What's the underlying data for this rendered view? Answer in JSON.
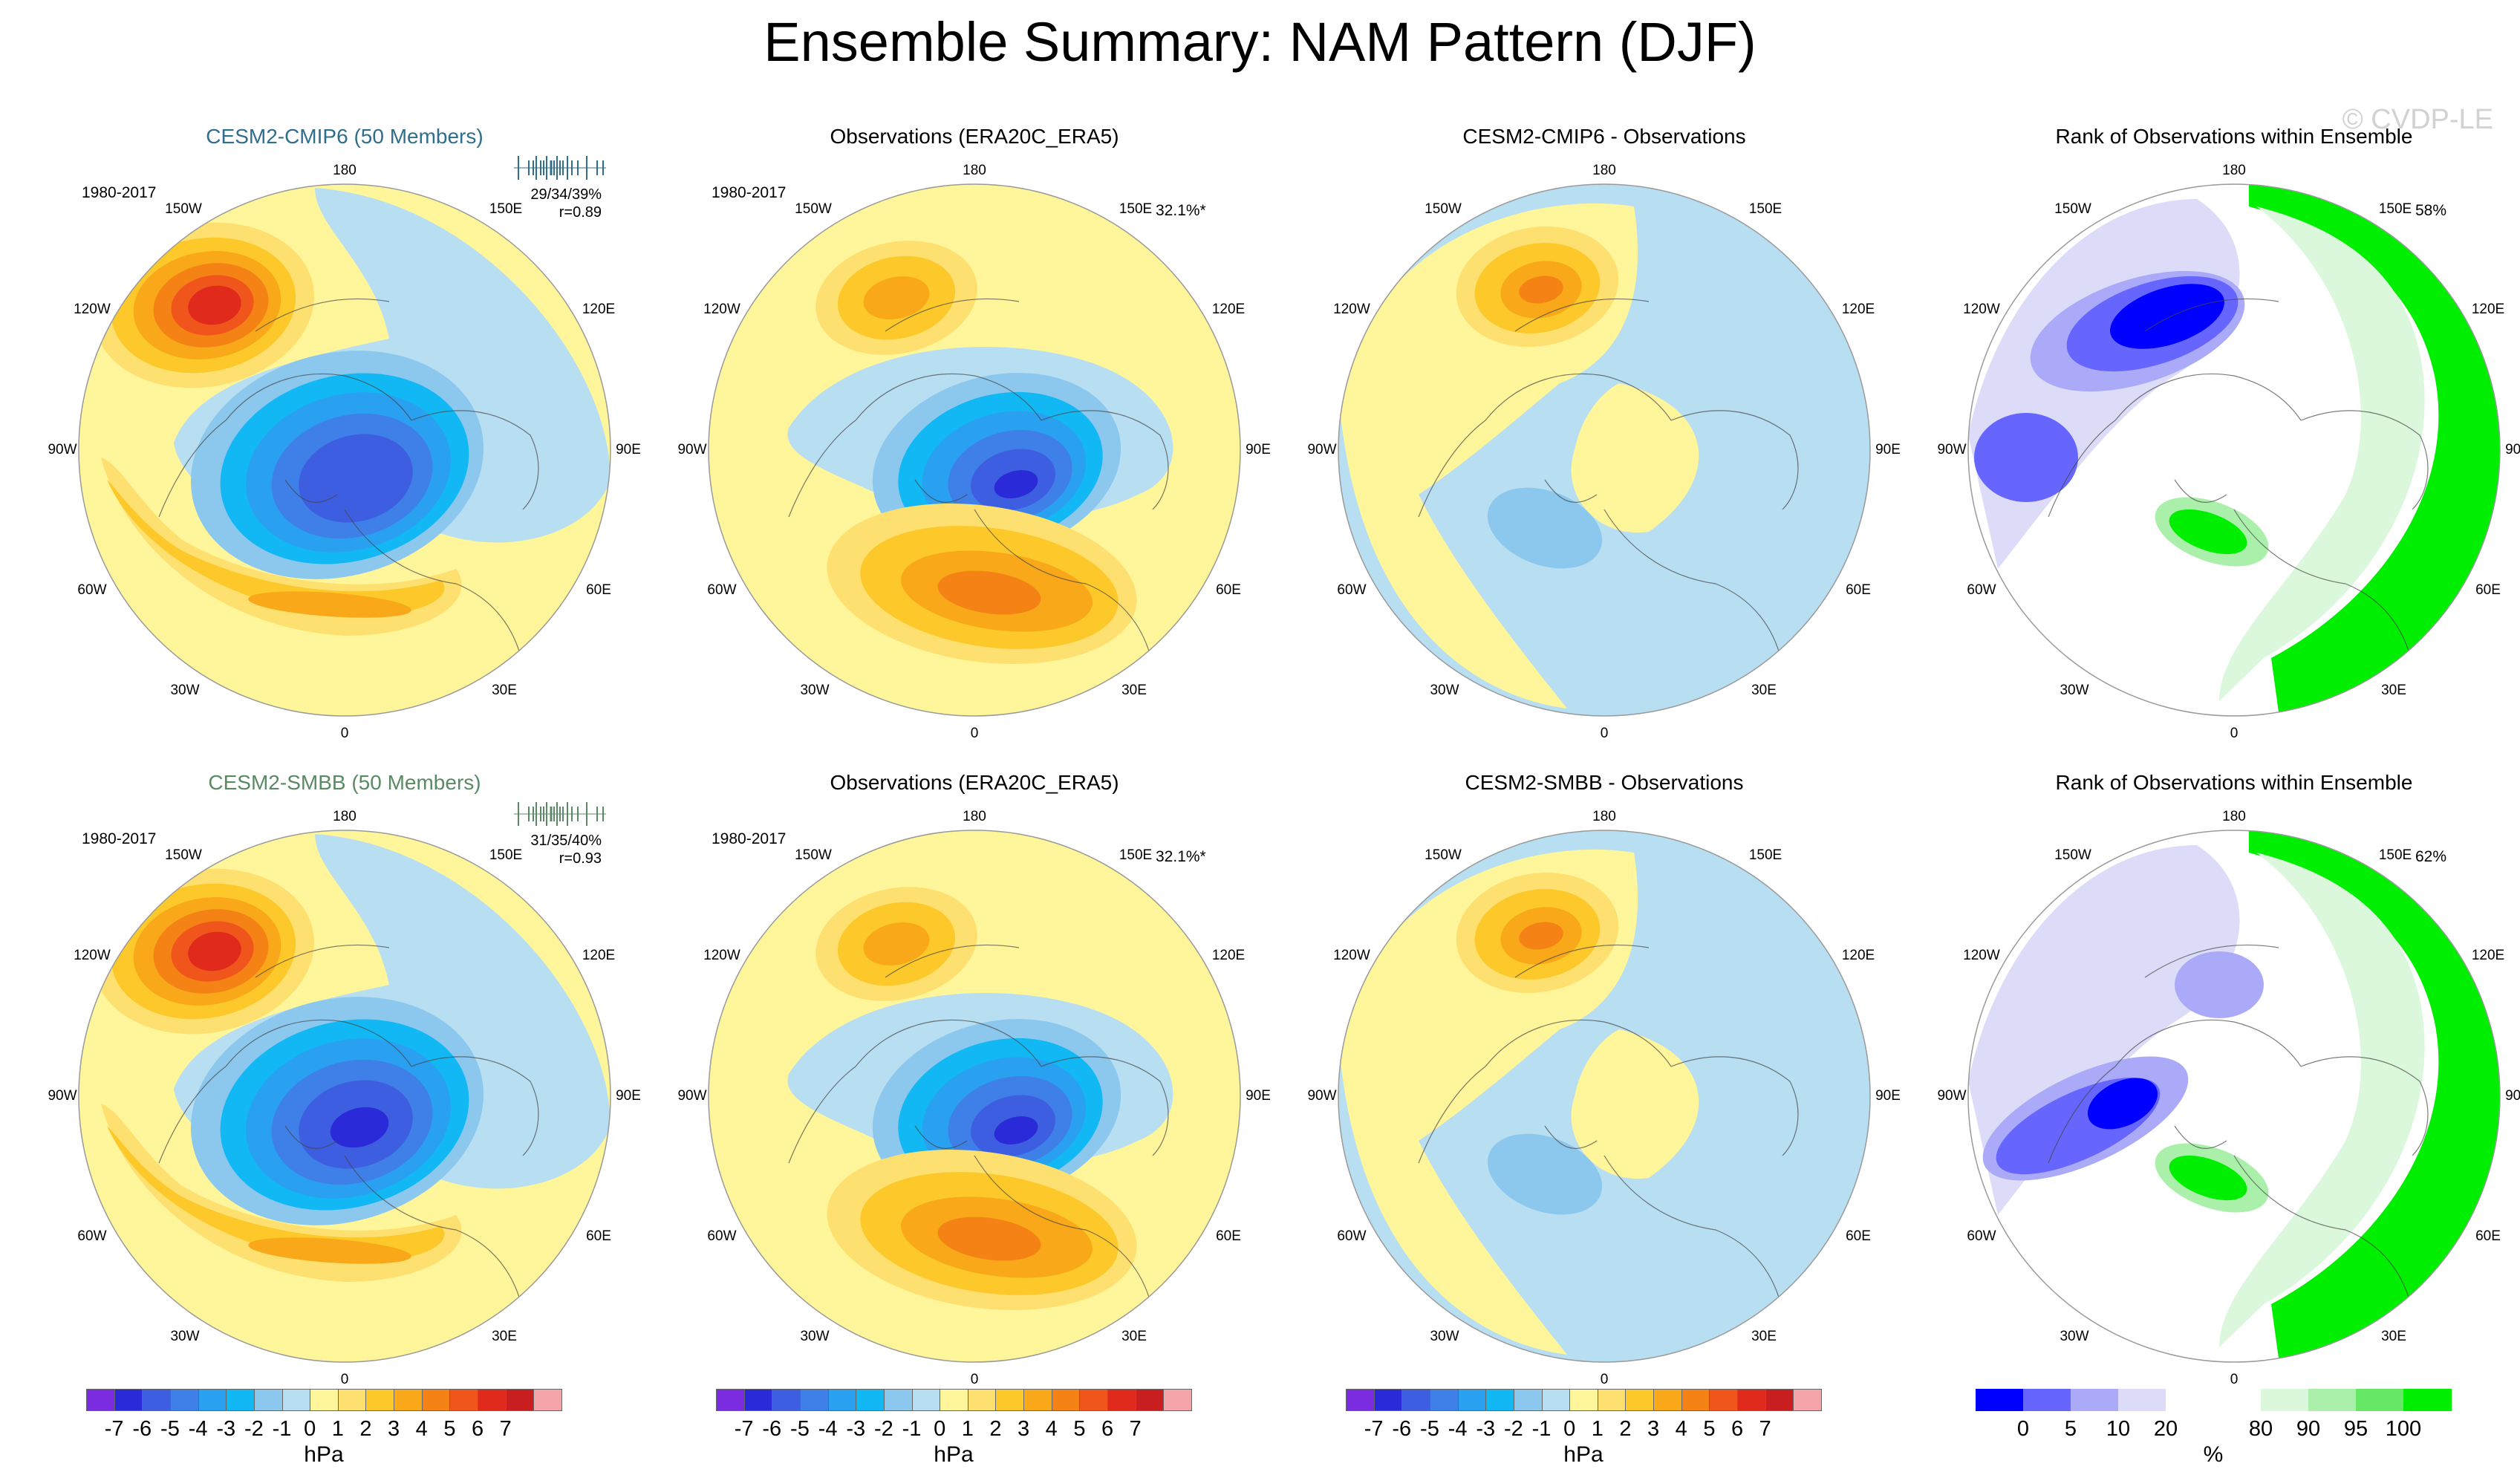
{
  "title": "Ensemble Summary: NAM Pattern (DJF)",
  "watermark": "© CVDP-LE",
  "panels": [
    {
      "id": "p1",
      "title": "CESM2-CMIP6 (50 Members)",
      "title_style": "cmip",
      "period": "1980-2017",
      "stats_line1": "29/34/39%",
      "stats_line2": "r=0.89",
      "pct": "",
      "kind": "model",
      "hist_color": "#2f6e8c"
    },
    {
      "id": "p2",
      "title": "Observations (ERA20C_ERA5)",
      "title_style": "",
      "period": "1980-2017",
      "pct": "32.1%*",
      "kind": "obs"
    },
    {
      "id": "p3",
      "title": "CESM2-CMIP6 - Observations",
      "title_style": "",
      "period": "",
      "pct": "",
      "kind": "diff1"
    },
    {
      "id": "p4",
      "title": "Rank of Observations within Ensemble",
      "title_style": "",
      "period": "",
      "pct": "58%",
      "kind": "rank1"
    },
    {
      "id": "p5",
      "title": "CESM2-SMBB (50 Members)",
      "title_style": "smbb",
      "period": "1980-2017",
      "stats_line1": "31/35/40%",
      "stats_line2": "r=0.93",
      "pct": "",
      "kind": "model2",
      "hist_color": "#5a8a64"
    },
    {
      "id": "p6",
      "title": "Observations (ERA20C_ERA5)",
      "title_style": "",
      "period": "1980-2017",
      "pct": "32.1%*",
      "kind": "obs"
    },
    {
      "id": "p7",
      "title": "CESM2-SMBB - Observations",
      "title_style": "",
      "period": "",
      "pct": "",
      "kind": "diff2"
    },
    {
      "id": "p8",
      "title": "Rank of Observations within Ensemble",
      "title_style": "",
      "period": "",
      "pct": "62%",
      "kind": "rank2"
    }
  ],
  "map_labels": {
    "top": "180",
    "bottom": "0",
    "left": "90W",
    "right": "90E",
    "upper_left_1": "150W",
    "upper_left_2": "120W",
    "upper_right_1": "150E",
    "upper_right_2": "120E",
    "lower_left_1": "60W",
    "lower_left_2": "30W",
    "lower_right_1": "60E",
    "lower_right_2": "30E"
  },
  "chart_data": [
    {
      "type": "heatmap",
      "description": "Polar stereographic SLP regression maps (NAM pattern), 4 columns x 2 rows",
      "units": "hPa",
      "levels": [
        -7,
        -6,
        -5,
        -4,
        -3,
        -2,
        -1,
        0,
        1,
        2,
        3,
        4,
        5,
        6,
        7
      ],
      "colorbar_ticks": [
        "-7",
        "-6",
        "-5",
        "-4",
        "-3",
        "-2",
        "-1",
        "0",
        "1",
        "2",
        "3",
        "4",
        "5",
        "6",
        "7"
      ],
      "colors": [
        "#7b2be0",
        "#2a2ad8",
        "#3d5ee0",
        "#3f7fe8",
        "#2aa0f0",
        "#12b8f4",
        "#8cc8ee",
        "#b8def2",
        "#fff59a",
        "#fde070",
        "#fcc82a",
        "#f8a818",
        "#f58214",
        "#f0561c",
        "#e02a1c",
        "#c81e20",
        "#f4a3a8"
      ],
      "colorbar_units": "hPa"
    },
    {
      "type": "heatmap",
      "description": "Rank of observations within ensemble",
      "units": "%",
      "colorbar_ticks": [
        "0",
        "5",
        "10",
        "20",
        "80",
        "90",
        "95",
        "100"
      ],
      "colors": [
        "#0000ff",
        "#6666ff",
        "#aaaaf8",
        "#dcdcf8",
        "#ffffff",
        "#ffffff",
        "#dcf8dc",
        "#aaf0aa",
        "#66e866",
        "#00ee00"
      ],
      "colorbar_units": "%"
    }
  ]
}
